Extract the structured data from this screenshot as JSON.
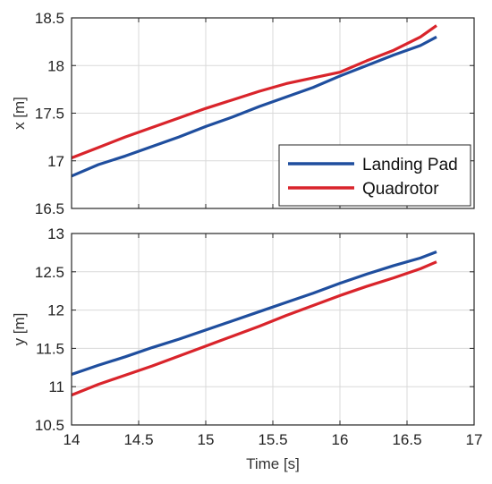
{
  "chart_data": [
    {
      "type": "line",
      "title": "",
      "xlabel": "",
      "ylabel": "x [m]",
      "xlim": [
        14,
        17
      ],
      "ylim": [
        16.5,
        18.5
      ],
      "xticks": [
        "14",
        "14.5",
        "15",
        "15.5",
        "16",
        "16.5",
        "17"
      ],
      "yticks": [
        "16.5",
        "17",
        "17.5",
        "18",
        "18.5"
      ],
      "grid": true,
      "legend": "bottom-right",
      "series": [
        {
          "name": "Landing Pad",
          "color": "#1f4e9e",
          "x": [
            14.0,
            14.2,
            14.4,
            14.6,
            14.8,
            15.0,
            15.2,
            15.4,
            15.6,
            15.8,
            16.0,
            16.2,
            16.4,
            16.6,
            16.72
          ],
          "y": [
            16.84,
            16.96,
            17.05,
            17.15,
            17.25,
            17.36,
            17.46,
            17.57,
            17.67,
            17.77,
            17.89,
            18.0,
            18.11,
            18.21,
            18.3
          ]
        },
        {
          "name": "Quadrotor",
          "color": "#d9242b",
          "x": [
            14.0,
            14.2,
            14.4,
            14.6,
            14.8,
            15.0,
            15.2,
            15.4,
            15.6,
            15.8,
            16.0,
            16.2,
            16.4,
            16.6,
            16.72
          ],
          "y": [
            17.03,
            17.14,
            17.25,
            17.35,
            17.45,
            17.55,
            17.64,
            17.73,
            17.81,
            17.87,
            17.93,
            18.05,
            18.16,
            18.3,
            18.42
          ]
        }
      ]
    },
    {
      "type": "line",
      "title": "",
      "xlabel": "Time [s]",
      "ylabel": "y [m]",
      "xlim": [
        14,
        17
      ],
      "ylim": [
        10.5,
        13
      ],
      "xticks": [
        "14",
        "14.5",
        "15",
        "15.5",
        "16",
        "16.5",
        "17"
      ],
      "yticks": [
        "10.5",
        "11",
        "11.5",
        "12",
        "12.5",
        "13"
      ],
      "grid": true,
      "series": [
        {
          "name": "Landing Pad",
          "color": "#1f4e9e",
          "x": [
            14.0,
            14.2,
            14.4,
            14.6,
            14.8,
            15.0,
            15.2,
            15.4,
            15.6,
            15.8,
            16.0,
            16.2,
            16.4,
            16.6,
            16.72
          ],
          "y": [
            11.16,
            11.28,
            11.39,
            11.51,
            11.62,
            11.74,
            11.86,
            11.98,
            12.1,
            12.22,
            12.35,
            12.47,
            12.58,
            12.68,
            12.76
          ]
        },
        {
          "name": "Quadrotor",
          "color": "#d9242b",
          "x": [
            14.0,
            14.2,
            14.4,
            14.6,
            14.8,
            15.0,
            15.2,
            15.4,
            15.6,
            15.8,
            16.0,
            16.2,
            16.4,
            16.6,
            16.72
          ],
          "y": [
            10.89,
            11.03,
            11.15,
            11.27,
            11.4,
            11.53,
            11.66,
            11.79,
            11.93,
            12.06,
            12.19,
            12.31,
            12.42,
            12.54,
            12.63
          ]
        }
      ]
    }
  ]
}
